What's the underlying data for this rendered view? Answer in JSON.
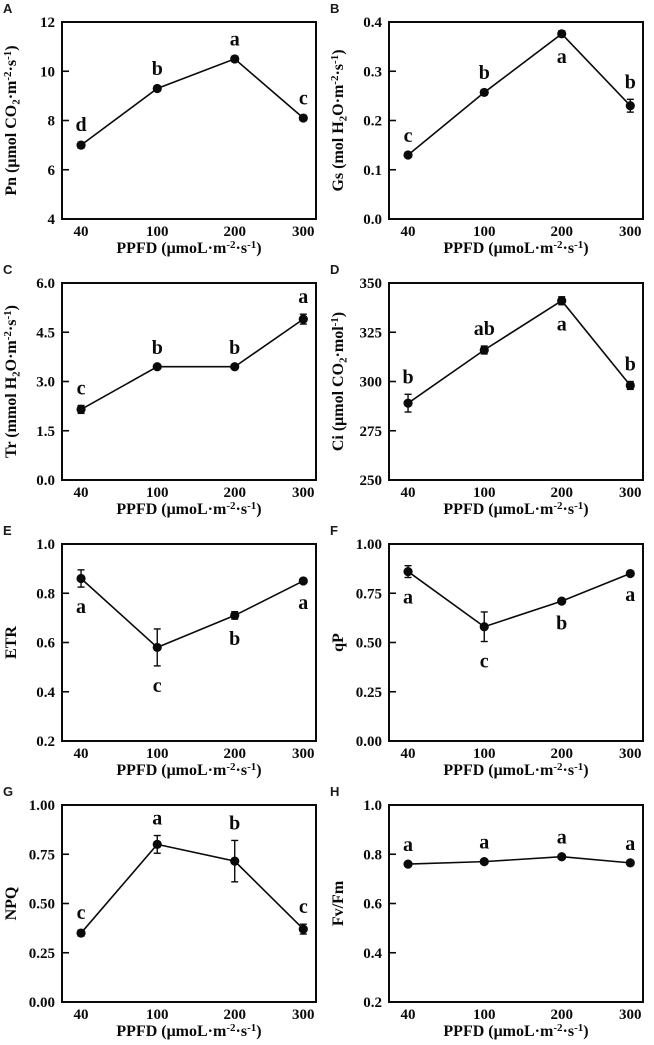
{
  "figure": {
    "background": "#ffffff",
    "ink_color": "#0a0a0a",
    "x_categories": [
      "40",
      "100",
      "200",
      "300"
    ],
    "xlabel_text": "PPFD (μmoL·m-2·s-1)"
  },
  "chart_data": [
    {
      "type": "line",
      "panel": "A",
      "ylabel": "Pn (μmol CO2·m-2·s-1)",
      "ylabel_segments": [
        {
          "t": "Pn (μmol CO"
        },
        {
          "t": "2",
          "s": "sub"
        },
        {
          "t": "·m"
        },
        {
          "t": "-2",
          "s": "sup"
        },
        {
          "t": "·s"
        },
        {
          "t": "-1",
          "s": "sup"
        },
        {
          "t": ")"
        }
      ],
      "xlabel": "PPFD (μmoL·m-2·s-1)",
      "xlabel_segments": [
        {
          "t": "PPFD (μmoL·m"
        },
        {
          "t": "-2",
          "s": "sup"
        },
        {
          "t": "·s"
        },
        {
          "t": "-1",
          "s": "sup"
        },
        {
          "t": ")"
        }
      ],
      "x_categories": [
        "40",
        "100",
        "200",
        "300"
      ],
      "values": [
        7.0,
        9.3,
        10.5,
        8.1
      ],
      "errors": [
        0.12,
        0.1,
        0.1,
        0.1
      ],
      "point_labels": [
        "d",
        "b",
        "a",
        "c"
      ],
      "label_side": [
        "above",
        "above",
        "above",
        "above"
      ],
      "ylim": [
        4,
        12
      ],
      "y_ticks": [
        "4",
        "6",
        "8",
        "10",
        "12"
      ],
      "grid": false,
      "marker": "circle",
      "color": "#0a0a0a"
    },
    {
      "type": "line",
      "panel": "B",
      "ylabel": "Gs (mol H2O·m-2·s-1)",
      "ylabel_segments": [
        {
          "t": "Gs (mol H"
        },
        {
          "t": "2",
          "s": "sub"
        },
        {
          "t": "O·m"
        },
        {
          "t": "-2",
          "s": "sup"
        },
        {
          "t": "·s"
        },
        {
          "t": "-1",
          "s": "sup"
        },
        {
          "t": ")"
        }
      ],
      "xlabel": "PPFD (μmoL·m-2·s-1)",
      "xlabel_segments": [
        {
          "t": "PPFD (μmoL·m"
        },
        {
          "t": "-2",
          "s": "sup"
        },
        {
          "t": "·s"
        },
        {
          "t": "-1",
          "s": "sup"
        },
        {
          "t": ")"
        }
      ],
      "x_categories": [
        "40",
        "100",
        "200",
        "300"
      ],
      "values": [
        0.13,
        0.257,
        0.376,
        0.23
      ],
      "errors": [
        0.004,
        0.005,
        0.006,
        0.013
      ],
      "point_labels": [
        "c",
        "b",
        "a",
        "b"
      ],
      "label_side": [
        "above",
        "above",
        "below",
        "above"
      ],
      "ylim": [
        0.0,
        0.4
      ],
      "y_ticks": [
        "0.0",
        "0.1",
        "0.2",
        "0.3",
        "0.4"
      ],
      "grid": false,
      "marker": "circle",
      "color": "#0a0a0a"
    },
    {
      "type": "line",
      "panel": "C",
      "ylabel": "Tr (mmol H2O·m-2·s-1)",
      "ylabel_segments": [
        {
          "t": "Tr (mmol H"
        },
        {
          "t": "2",
          "s": "sub"
        },
        {
          "t": "O·m"
        },
        {
          "t": "-2",
          "s": "sup"
        },
        {
          "t": "·s"
        },
        {
          "t": "-1",
          "s": "sup"
        },
        {
          "t": ")"
        }
      ],
      "xlabel": "PPFD (μmoL·m-2·s-1)",
      "xlabel_segments": [
        {
          "t": "PPFD (μmoL·m"
        },
        {
          "t": "-2",
          "s": "sup"
        },
        {
          "t": "·s"
        },
        {
          "t": "-1",
          "s": "sup"
        },
        {
          "t": ")"
        }
      ],
      "x_categories": [
        "40",
        "100",
        "200",
        "300"
      ],
      "values": [
        2.15,
        3.45,
        3.45,
        4.9
      ],
      "errors": [
        0.12,
        0.05,
        0.05,
        0.15
      ],
      "point_labels": [
        "c",
        "b",
        "b",
        "a"
      ],
      "label_side": [
        "above",
        "above",
        "above",
        "above"
      ],
      "ylim": [
        0.0,
        6.0
      ],
      "y_ticks": [
        "0.0",
        "1.5",
        "3.0",
        "4.5",
        "6.0"
      ],
      "grid": false,
      "marker": "circle",
      "color": "#0a0a0a"
    },
    {
      "type": "line",
      "panel": "D",
      "ylabel": "Ci (μmol CO2·mol-1)",
      "ylabel_segments": [
        {
          "t": "Ci (μmol CO"
        },
        {
          "t": "2",
          "s": "sub"
        },
        {
          "t": "·mol"
        },
        {
          "t": "-1",
          "s": "sup"
        },
        {
          "t": ")"
        }
      ],
      "xlabel": "PPFD (μmoL·m-2·s-1)",
      "xlabel_segments": [
        {
          "t": "PPFD (μmoL·m"
        },
        {
          "t": "-2",
          "s": "sup"
        },
        {
          "t": "·s"
        },
        {
          "t": "-1",
          "s": "sup"
        },
        {
          "t": ")"
        }
      ],
      "x_categories": [
        "40",
        "100",
        "200",
        "300"
      ],
      "values": [
        289,
        316,
        341,
        298
      ],
      "errors": [
        4.5,
        2,
        2,
        2
      ],
      "point_labels": [
        "b",
        "ab",
        "a",
        "b"
      ],
      "label_side": [
        "above",
        "above",
        "below",
        "above"
      ],
      "ylim": [
        250,
        350
      ],
      "y_ticks": [
        "250",
        "275",
        "300",
        "325",
        "350"
      ],
      "grid": false,
      "marker": "circle",
      "color": "#0a0a0a"
    },
    {
      "type": "line",
      "panel": "E",
      "ylabel": "ETR",
      "ylabel_segments": [
        {
          "t": "ETR"
        }
      ],
      "xlabel": "PPFD (μmoL·m-2·s-1)",
      "xlabel_segments": [
        {
          "t": "PPFD (μmoL·m"
        },
        {
          "t": "-2",
          "s": "sup"
        },
        {
          "t": "·s"
        },
        {
          "t": "-1",
          "s": "sup"
        },
        {
          "t": ")"
        }
      ],
      "x_categories": [
        "40",
        "100",
        "200",
        "300"
      ],
      "values": [
        0.86,
        0.58,
        0.71,
        0.85
      ],
      "errors": [
        0.035,
        0.075,
        0.015,
        0.008
      ],
      "point_labels": [
        "a",
        "c",
        "b",
        "a"
      ],
      "label_side": [
        "below",
        "below",
        "below",
        "below"
      ],
      "ylim": [
        0.2,
        1.0
      ],
      "y_ticks": [
        "0.2",
        "0.4",
        "0.6",
        "0.8",
        "1.0"
      ],
      "grid": false,
      "marker": "circle",
      "color": "#0a0a0a"
    },
    {
      "type": "line",
      "panel": "F",
      "ylabel": "qP",
      "ylabel_segments": [
        {
          "t": "qP"
        }
      ],
      "xlabel": "PPFD (μmoL·m-2·s-1)",
      "xlabel_segments": [
        {
          "t": "PPFD (μmoL·m"
        },
        {
          "t": "-2",
          "s": "sup"
        },
        {
          "t": "·s"
        },
        {
          "t": "-1",
          "s": "sup"
        },
        {
          "t": ")"
        }
      ],
      "x_categories": [
        "40",
        "100",
        "200",
        "300"
      ],
      "values": [
        0.86,
        0.58,
        0.71,
        0.85
      ],
      "errors": [
        0.03,
        0.075,
        0.012,
        0.008
      ],
      "point_labels": [
        "a",
        "c",
        "b",
        "a"
      ],
      "label_side": [
        "below",
        "below",
        "below",
        "below"
      ],
      "ylim": [
        0.0,
        1.0
      ],
      "y_ticks": [
        "0.00",
        "0.25",
        "0.50",
        "0.75",
        "1.00"
      ],
      "grid": false,
      "marker": "circle",
      "color": "#0a0a0a"
    },
    {
      "type": "line",
      "panel": "G",
      "ylabel": "NPQ",
      "ylabel_segments": [
        {
          "t": "NPQ"
        }
      ],
      "xlabel": "PPFD (μmoL·m-2·s-1)",
      "xlabel_segments": [
        {
          "t": "PPFD (μmoL·m"
        },
        {
          "t": "-2",
          "s": "sup"
        },
        {
          "t": "·s"
        },
        {
          "t": "-1",
          "s": "sup"
        },
        {
          "t": ")"
        }
      ],
      "x_categories": [
        "40",
        "100",
        "200",
        "300"
      ],
      "values": [
        0.35,
        0.8,
        0.715,
        0.37
      ],
      "errors": [
        0.015,
        0.045,
        0.105,
        0.025
      ],
      "point_labels": [
        "c",
        "a",
        "b",
        "c"
      ],
      "label_side": [
        "above",
        "above",
        "above",
        "above"
      ],
      "ylim": [
        0.0,
        1.0
      ],
      "y_ticks": [
        "0.00",
        "0.25",
        "0.50",
        "0.75",
        "1.00"
      ],
      "grid": false,
      "marker": "circle",
      "color": "#0a0a0a"
    },
    {
      "type": "line",
      "panel": "H",
      "ylabel": "Fv/Fm",
      "ylabel_segments": [
        {
          "t": "Fv/Fm"
        }
      ],
      "xlabel": "PPFD (μmoL·m-2·s-1)",
      "xlabel_segments": [
        {
          "t": "PPFD (μmoL·m"
        },
        {
          "t": "-2",
          "s": "sup"
        },
        {
          "t": "·s"
        },
        {
          "t": "-1",
          "s": "sup"
        },
        {
          "t": ")"
        }
      ],
      "x_categories": [
        "40",
        "100",
        "200",
        "300"
      ],
      "values": [
        0.76,
        0.77,
        0.79,
        0.765
      ],
      "errors": [
        0.008,
        0.008,
        0.008,
        0.008
      ],
      "point_labels": [
        "a",
        "a",
        "a",
        "a"
      ],
      "label_side": [
        "above",
        "above",
        "above",
        "above"
      ],
      "ylim": [
        0.2,
        1.0
      ],
      "y_ticks": [
        "0.2",
        "0.4",
        "0.6",
        "0.8",
        "1.0"
      ],
      "grid": false,
      "marker": "circle",
      "color": "#0a0a0a"
    }
  ]
}
